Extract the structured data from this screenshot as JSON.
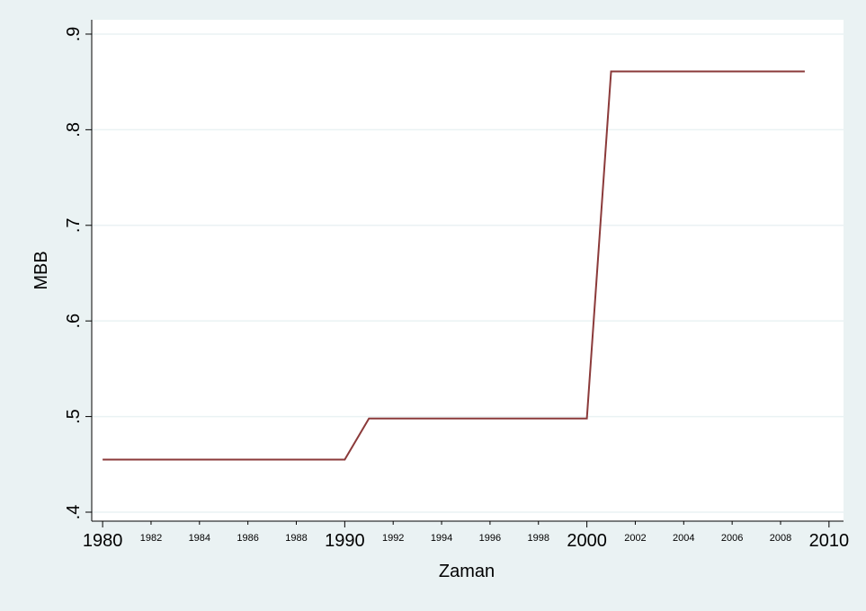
{
  "chart_data": {
    "type": "line",
    "x_label": "Zaman",
    "y_label": "MBB",
    "x": [
      1980,
      1981,
      1982,
      1983,
      1984,
      1985,
      1986,
      1987,
      1988,
      1989,
      1990,
      1991,
      1992,
      1993,
      1994,
      1995,
      1996,
      1997,
      1998,
      1999,
      2000,
      2001,
      2002,
      2003,
      2004,
      2005,
      2006,
      2007,
      2008,
      2009
    ],
    "series": [
      {
        "color": "#8b3a3a",
        "values": [
          0.455,
          0.455,
          0.455,
          0.455,
          0.455,
          0.455,
          0.455,
          0.455,
          0.455,
          0.455,
          0.455,
          0.498,
          0.498,
          0.498,
          0.498,
          0.498,
          0.498,
          0.498,
          0.498,
          0.498,
          0.498,
          0.861,
          0.861,
          0.861,
          0.861,
          0.861,
          0.861,
          0.861,
          0.861,
          0.861
        ]
      }
    ],
    "xlim": [
      1979.55,
      2010.6
    ],
    "xticks": [
      1980,
      1990,
      2000,
      2010
    ],
    "xminorticks": [
      1982,
      1984,
      1986,
      1988,
      1992,
      1994,
      1996,
      1998,
      2002,
      2004,
      2006,
      2008
    ],
    "ylim": [
      0.3906,
      0.915
    ],
    "yticks": [
      {
        "value": 0.4,
        "label": ".4"
      },
      {
        "value": 0.5,
        "label": ".5"
      },
      {
        "value": 0.6,
        "label": ".6"
      },
      {
        "value": 0.7,
        "label": ".7"
      },
      {
        "value": 0.8,
        "label": ".8"
      },
      {
        "value": 0.9,
        "label": ".9"
      }
    ],
    "grid": true
  }
}
